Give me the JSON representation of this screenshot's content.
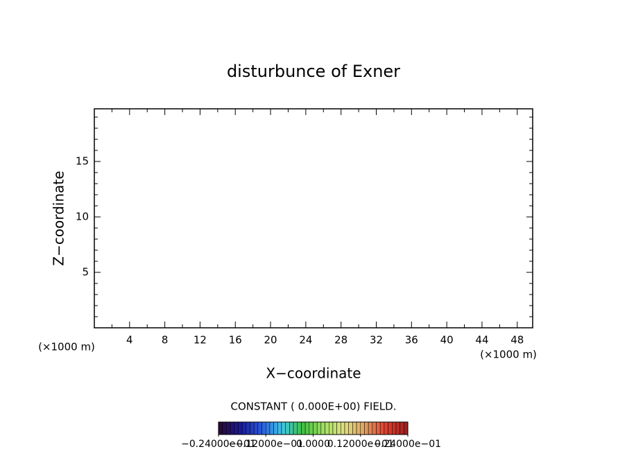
{
  "chart_data": {
    "type": "contour",
    "title": "disturbunce of Exner",
    "x_label": "X−coordinate",
    "y_label": "Z−coordinate",
    "x_unit": "(×1000 m)",
    "y_unit": "(×1000 m)",
    "xlim": [
      0,
      49.75
    ],
    "ylim": [
      0,
      19.75
    ],
    "xticks": [
      4,
      8,
      12,
      16,
      20,
      24,
      28,
      32,
      36,
      40,
      44,
      48
    ],
    "yticks": [
      5,
      10,
      15
    ],
    "xminorticks": [
      2,
      6,
      10,
      14,
      18,
      22,
      26,
      30,
      34,
      38,
      42,
      46
    ],
    "yminorticks": [
      1,
      2,
      3,
      4,
      6,
      7,
      8,
      9,
      11,
      12,
      13,
      14,
      16,
      17,
      18,
      19
    ],
    "field_note": "CONSTANT ( 0.000E+00) FIELD.",
    "colorbar": {
      "lim": [
        -0.024,
        0.024
      ],
      "colors": [
        "#2a0a3a",
        "#1a1a9a",
        "#2a5ae0",
        "#40c8e8",
        "#40c040",
        "#a0e060",
        "#e0e080",
        "#e0a060",
        "#e04030",
        "#a02020"
      ],
      "ticks": [
        {
          "value": -0.024,
          "label": "−0.24000e−01"
        },
        {
          "value": -0.012,
          "label": "−0.12000e−01"
        },
        {
          "value": 0,
          "label": "0.0000"
        },
        {
          "value": 0.012,
          "label": "0.12000e−01"
        },
        {
          "value": 0.024,
          "label": "0.24000e−01"
        }
      ]
    }
  }
}
